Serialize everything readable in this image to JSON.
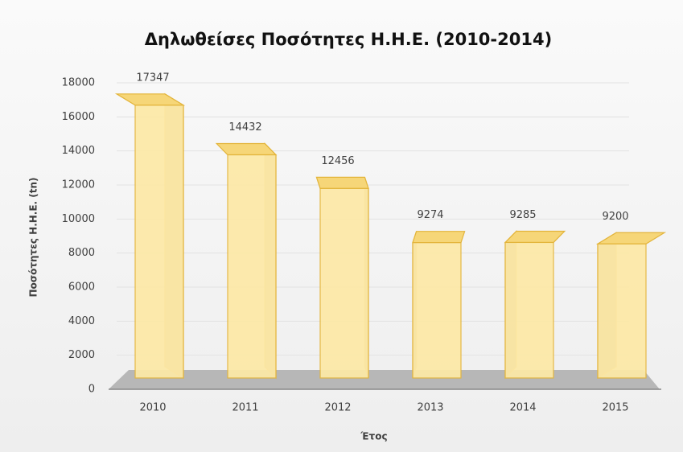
{
  "chart_data": {
    "type": "bar3d",
    "title": "Δηλωθείσες Ποσότητες Η.Η.Ε. (2010-2014)",
    "x_label": "Έτος",
    "y_label": "Ποσότητες Η.Η.Ε. (tn)",
    "categories": [
      "2010",
      "2011",
      "2012",
      "2013",
      "2014",
      "2015"
    ],
    "values": [
      17347,
      14432,
      12456,
      9274,
      9285,
      9200
    ],
    "color": "#fde9a6",
    "ylim": [
      0,
      18000
    ],
    "yticks": [
      0,
      2000,
      4000,
      6000,
      8000,
      10000,
      12000,
      14000,
      16000,
      18000
    ],
    "grid": true
  }
}
